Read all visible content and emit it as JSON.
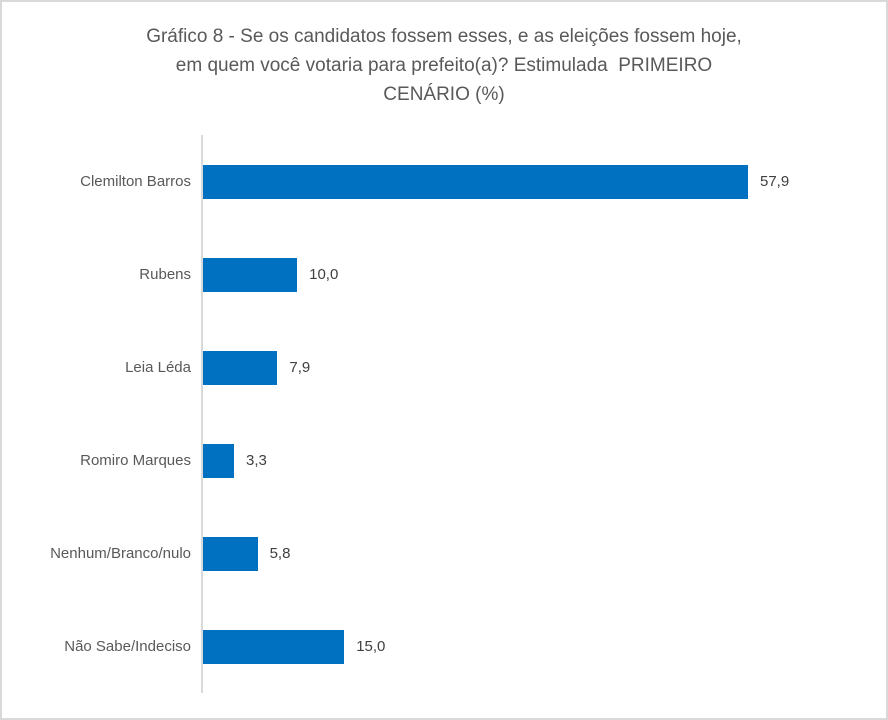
{
  "chart_data": {
    "type": "bar",
    "orientation": "horizontal",
    "title": "Gráfico 8 - Se os candidatos fossem esses, e as eleições fossem hoje, em quem você votaria para prefeito(a)? Estimulada  PRIMEIRO CENÁRIO (%)",
    "title_lines": [
      "Gráfico 8 - Se os candidatos fossem esses, e as eleições fossem hoje,",
      "em quem você votaria para prefeito(a)? Estimulada  PRIMEIRO",
      "CENÁRIO (%)"
    ],
    "categories": [
      "Clemilton Barros",
      "Rubens",
      "Leia Léda",
      "Romiro Marques",
      "Nenhum/Branco/nulo",
      "Não Sabe/Indeciso"
    ],
    "values": [
      57.9,
      10.0,
      7.9,
      3.3,
      5.8,
      15.0
    ],
    "value_labels": [
      "57,9",
      "10,0",
      "7,9",
      "3,3",
      "5,8",
      "15,0"
    ],
    "xlabel": "",
    "ylabel": "",
    "xlim": [
      0,
      61.5
    ],
    "grid": false,
    "legend": false,
    "colors": {
      "bar": "#0070C0",
      "axis_line": "#D9D9D9",
      "category_label": "#595959",
      "value_label": "#404040",
      "title": "#595959",
      "frame_border": "#D9D9D9",
      "background": "#FFFFFF"
    }
  }
}
